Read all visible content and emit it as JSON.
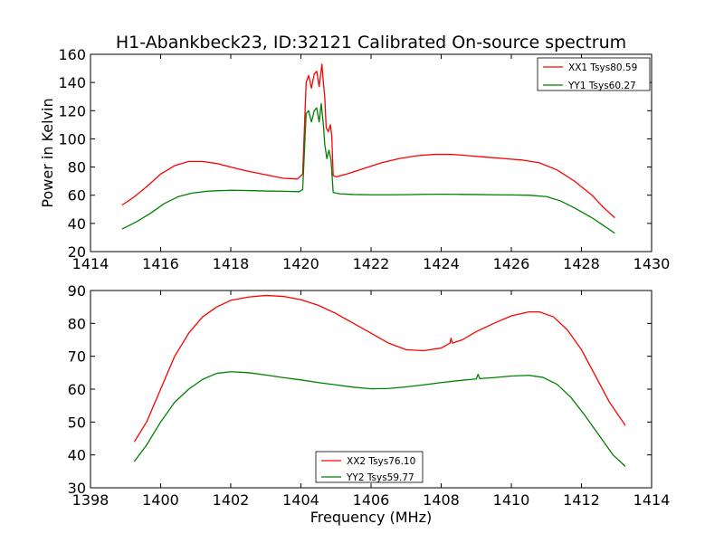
{
  "chart_data": [
    {
      "type": "line",
      "title": "H1-Abankbeck23, ID:32121 Calibrated On-source spectrum",
      "xlabel": "",
      "ylabel": "Power in Kelvin",
      "xlim": [
        1414,
        1430
      ],
      "ylim": [
        20,
        160
      ],
      "xticks": [
        1414,
        1416,
        1418,
        1420,
        1422,
        1424,
        1426,
        1428,
        1430
      ],
      "yticks": [
        20,
        40,
        60,
        80,
        100,
        120,
        140,
        160
      ],
      "grid": false,
      "legend_position": "top-right",
      "series": [
        {
          "name": "XX1 Tsys80.59",
          "color": "#ff0000",
          "points": [
            [
              1414.9,
              53
            ],
            [
              1415.2,
              58
            ],
            [
              1415.6,
              66
            ],
            [
              1416.0,
              75
            ],
            [
              1416.4,
              81
            ],
            [
              1416.8,
              84
            ],
            [
              1417.2,
              84
            ],
            [
              1417.6,
              82.5
            ],
            [
              1418.0,
              80
            ],
            [
              1418.5,
              77
            ],
            [
              1419.0,
              74.5
            ],
            [
              1419.5,
              72
            ],
            [
              1419.9,
              71.5
            ],
            [
              1420.05,
              75
            ],
            [
              1420.15,
              140
            ],
            [
              1420.22,
              145
            ],
            [
              1420.3,
              136
            ],
            [
              1420.38,
              146
            ],
            [
              1420.45,
              148
            ],
            [
              1420.52,
              137
            ],
            [
              1420.6,
              153
            ],
            [
              1420.64,
              140
            ],
            [
              1420.68,
              130
            ],
            [
              1420.72,
              108
            ],
            [
              1420.78,
              105
            ],
            [
              1420.84,
              110
            ],
            [
              1420.88,
              102
            ],
            [
              1420.92,
              74
            ],
            [
              1421.0,
              73
            ],
            [
              1421.3,
              75
            ],
            [
              1421.8,
              79
            ],
            [
              1422.3,
              83
            ],
            [
              1422.8,
              86
            ],
            [
              1423.3,
              88
            ],
            [
              1423.8,
              89
            ],
            [
              1424.3,
              89
            ],
            [
              1424.8,
              88
            ],
            [
              1425.3,
              87
            ],
            [
              1425.8,
              86
            ],
            [
              1426.3,
              85
            ],
            [
              1426.8,
              83
            ],
            [
              1427.3,
              78
            ],
            [
              1427.8,
              70
            ],
            [
              1428.3,
              60
            ],
            [
              1428.6,
              52
            ],
            [
              1428.95,
              44
            ]
          ]
        },
        {
          "name": "YY1 Tsys60.27",
          "color": "#008000",
          "points": [
            [
              1414.9,
              36
            ],
            [
              1415.3,
              41
            ],
            [
              1415.7,
              47
            ],
            [
              1416.1,
              54
            ],
            [
              1416.5,
              59
            ],
            [
              1416.9,
              61.5
            ],
            [
              1417.4,
              63
            ],
            [
              1418.0,
              63.5
            ],
            [
              1418.5,
              63.3
            ],
            [
              1419.0,
              63
            ],
            [
              1419.5,
              62.8
            ],
            [
              1419.95,
              62.5
            ],
            [
              1420.05,
              64
            ],
            [
              1420.15,
              118
            ],
            [
              1420.22,
              120
            ],
            [
              1420.3,
              112
            ],
            [
              1420.38,
              120
            ],
            [
              1420.45,
              122
            ],
            [
              1420.52,
              112
            ],
            [
              1420.58,
              125
            ],
            [
              1420.64,
              110
            ],
            [
              1420.68,
              96
            ],
            [
              1420.74,
              86
            ],
            [
              1420.8,
              92
            ],
            [
              1420.86,
              85
            ],
            [
              1420.92,
              62
            ],
            [
              1421.1,
              61
            ],
            [
              1421.5,
              60.5
            ],
            [
              1422.0,
              60.3
            ],
            [
              1422.5,
              60.3
            ],
            [
              1423.0,
              60.4
            ],
            [
              1423.5,
              60.6
            ],
            [
              1424.0,
              60.7
            ],
            [
              1424.5,
              60.6
            ],
            [
              1425.0,
              60.5
            ],
            [
              1425.5,
              60.3
            ],
            [
              1426.0,
              60.2
            ],
            [
              1426.5,
              60
            ],
            [
              1427.0,
              59
            ],
            [
              1427.4,
              56
            ],
            [
              1427.8,
              51
            ],
            [
              1428.3,
              44
            ],
            [
              1428.6,
              39
            ],
            [
              1428.95,
              33
            ]
          ]
        }
      ]
    },
    {
      "type": "line",
      "title": "",
      "xlabel": "Frequency (MHz)",
      "ylabel": "",
      "xlim": [
        1398,
        1414
      ],
      "ylim": [
        30,
        90
      ],
      "xticks": [
        1398,
        1400,
        1402,
        1404,
        1406,
        1408,
        1410,
        1412,
        1414
      ],
      "yticks": [
        30,
        40,
        50,
        60,
        70,
        80,
        90
      ],
      "grid": false,
      "legend_position": "bottom-center",
      "series": [
        {
          "name": "XX2 Tsys76.10",
          "color": "#ff0000",
          "points": [
            [
              1399.25,
              44
            ],
            [
              1399.6,
              50
            ],
            [
              1400.0,
              60
            ],
            [
              1400.4,
              70
            ],
            [
              1400.8,
              77
            ],
            [
              1401.2,
              82
            ],
            [
              1401.6,
              85
            ],
            [
              1402.0,
              87
            ],
            [
              1402.5,
              88
            ],
            [
              1403.0,
              88.5
            ],
            [
              1403.5,
              88.2
            ],
            [
              1404.0,
              87.2
            ],
            [
              1404.5,
              85.5
            ],
            [
              1405.0,
              83
            ],
            [
              1405.5,
              80
            ],
            [
              1406.0,
              77
            ],
            [
              1406.5,
              74
            ],
            [
              1407.0,
              72
            ],
            [
              1407.5,
              71.7
            ],
            [
              1408.0,
              72.5
            ],
            [
              1408.25,
              74
            ],
            [
              1408.28,
              75.5
            ],
            [
              1408.32,
              74
            ],
            [
              1408.6,
              75
            ],
            [
              1409.0,
              77.5
            ],
            [
              1409.5,
              80
            ],
            [
              1410.0,
              82.3
            ],
            [
              1410.5,
              83.5
            ],
            [
              1410.8,
              83.5
            ],
            [
              1411.2,
              82
            ],
            [
              1411.6,
              78
            ],
            [
              1412.0,
              72
            ],
            [
              1412.4,
              64
            ],
            [
              1412.8,
              56
            ],
            [
              1413.25,
              49
            ]
          ]
        },
        {
          "name": "YY2 Tsys59.77",
          "color": "#008000",
          "points": [
            [
              1399.25,
              38
            ],
            [
              1399.6,
              43
            ],
            [
              1400.0,
              50
            ],
            [
              1400.4,
              56
            ],
            [
              1400.8,
              60
            ],
            [
              1401.2,
              63
            ],
            [
              1401.6,
              64.8
            ],
            [
              1402.0,
              65.3
            ],
            [
              1402.5,
              65
            ],
            [
              1403.0,
              64.3
            ],
            [
              1403.5,
              63.5
            ],
            [
              1404.0,
              62.8
            ],
            [
              1404.5,
              62
            ],
            [
              1405.0,
              61.3
            ],
            [
              1405.5,
              60.6
            ],
            [
              1406.0,
              60.1
            ],
            [
              1406.5,
              60.2
            ],
            [
              1407.0,
              60.7
            ],
            [
              1407.5,
              61.3
            ],
            [
              1408.0,
              62
            ],
            [
              1408.5,
              62.6
            ],
            [
              1409.0,
              63.1
            ],
            [
              1409.05,
              64.5
            ],
            [
              1409.1,
              63.2
            ],
            [
              1409.5,
              63.5
            ],
            [
              1410.0,
              64
            ],
            [
              1410.5,
              64.2
            ],
            [
              1410.9,
              63.6
            ],
            [
              1411.3,
              61.5
            ],
            [
              1411.7,
              57.5
            ],
            [
              1412.1,
              52
            ],
            [
              1412.5,
              46
            ],
            [
              1412.9,
              40
            ],
            [
              1413.25,
              36.5
            ]
          ]
        }
      ]
    }
  ]
}
